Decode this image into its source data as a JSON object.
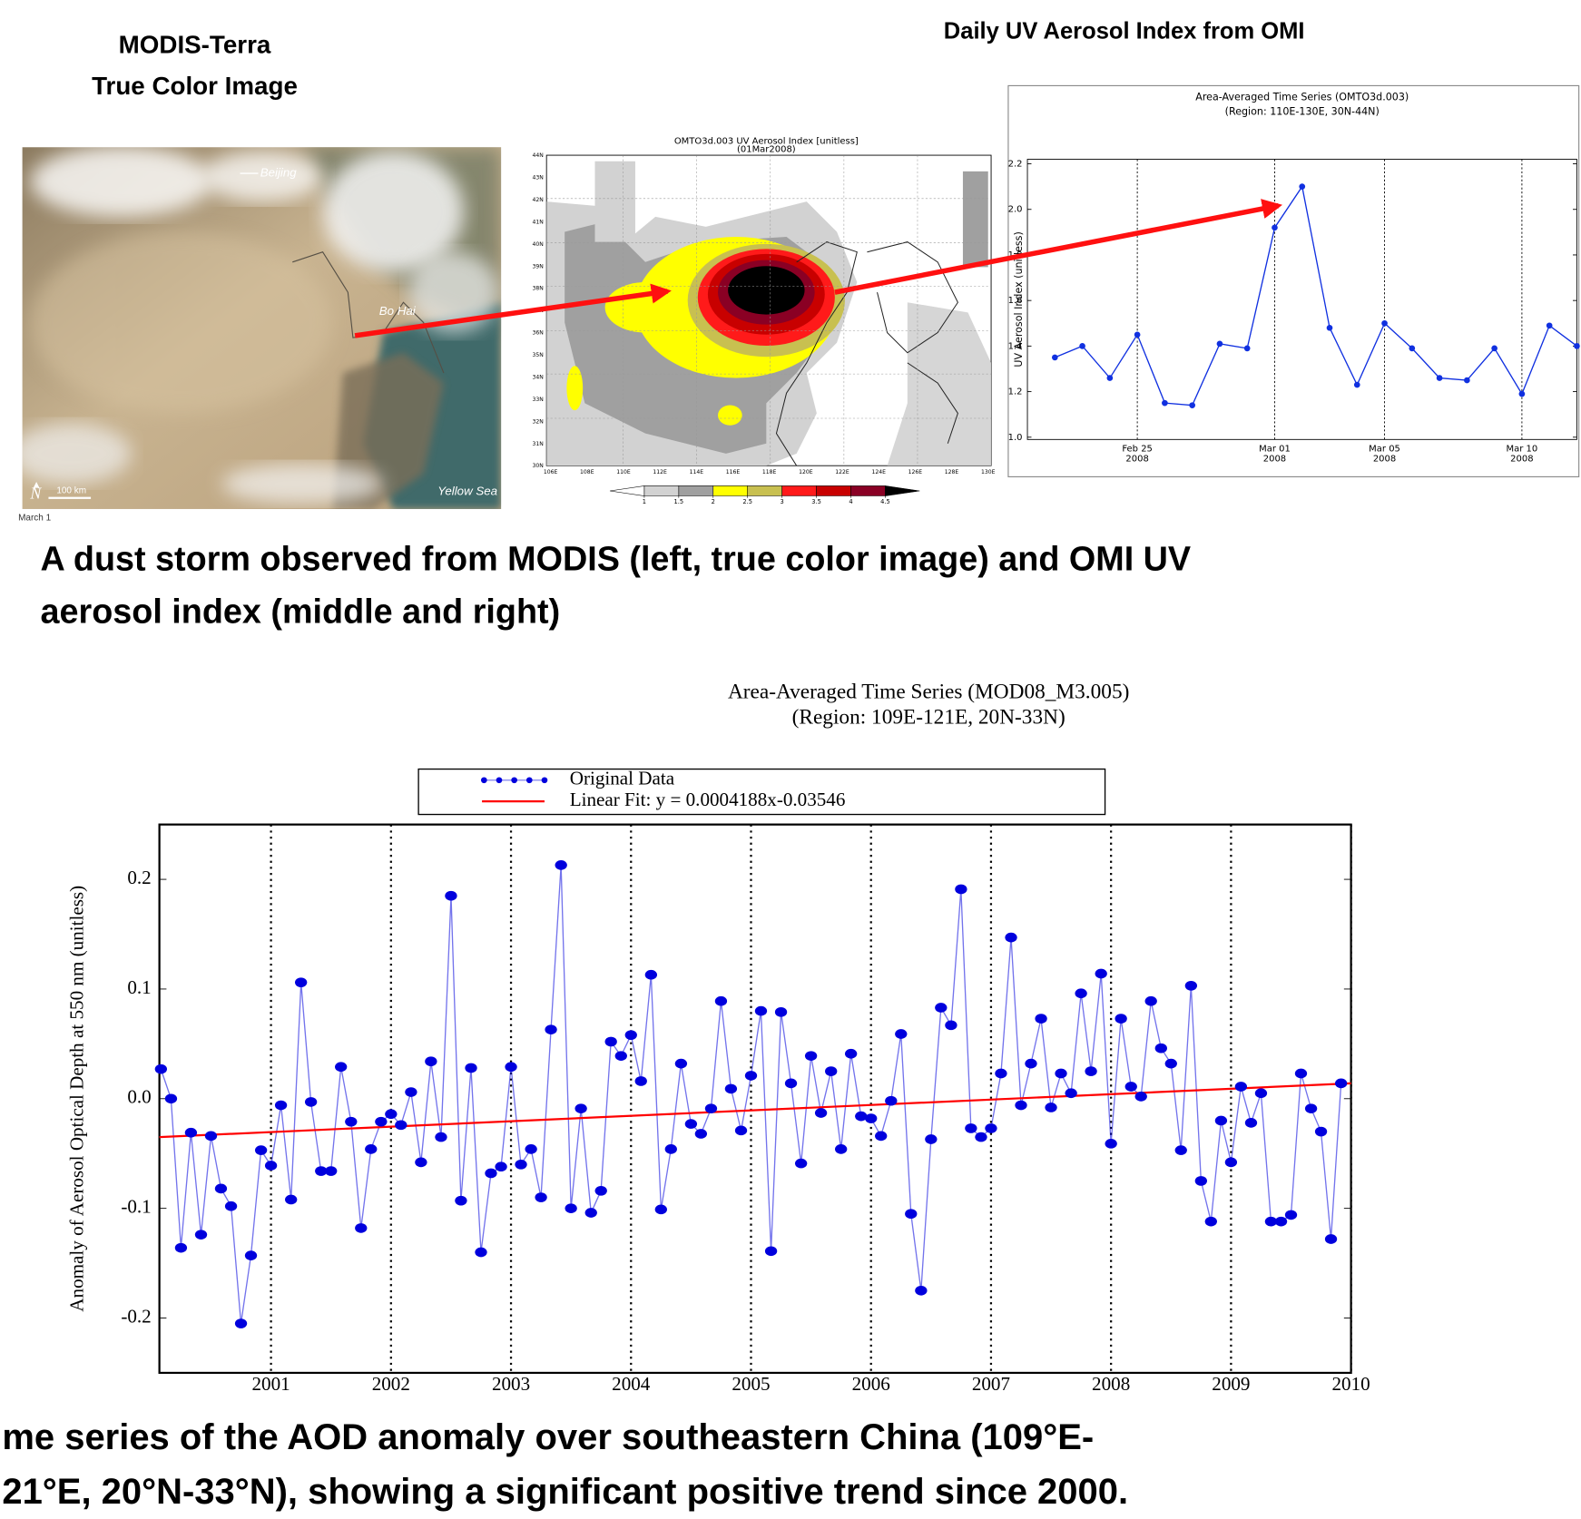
{
  "slide": {
    "modis_title": [
      "MODIS-Terra",
      "True Color Image"
    ],
    "omi_title": "Daily UV Aerosol Index from OMI",
    "caption_top": [
      "A dust storm observed from MODIS (left, true color image) and OMI UV",
      "aerosol index (middle and right)"
    ],
    "caption_bottom": [
      "me series of the AOD anomaly over southeastern China (109°E-",
      "21°E, 20°N-33°N),  showing  a significant positive trend since 2000."
    ]
  },
  "image": {
    "beijing": "Beijing",
    "bo_hai": "Bo Hai",
    "yellow_sea": "Yellow Sea",
    "scale": "100 km",
    "date": "March 1"
  },
  "map": {
    "title": "OMTO3d.003 UV Aerosol Index [unitless]",
    "date": "(01Mar2008)",
    "lat_labels": [
      "30N",
      "31N",
      "32N",
      "33N",
      "34N",
      "35N",
      "36N",
      "37N",
      "38N",
      "39N",
      "40N",
      "41N",
      "42N",
      "43N",
      "44N"
    ],
    "lon_labels": [
      "106E",
      "108E",
      "110E",
      "112E",
      "114E",
      "116E",
      "118E",
      "120E",
      "122E",
      "124E",
      "126E",
      "128E",
      "130E"
    ],
    "colorbar_ticks": [
      1,
      1.5,
      2,
      2.5,
      3,
      3.5,
      4,
      4.5
    ],
    "colorbar_colors": [
      "#ffffff",
      "#d2d2d2",
      "#a0a0a0",
      "#ffff00",
      "#c8c050",
      "#ff1a1a",
      "#c80000",
      "#8a0024",
      "#000000"
    ]
  },
  "chart_data": [
    {
      "type": "line",
      "title": "Area-Averaged Time Series (OMTO3d.003)",
      "subtitle": "(Region: 110E-130E, 30N-44N)",
      "y_label": "UV Aerosol Index  (unitless)",
      "x": [
        "2008-02-22",
        "2008-02-23",
        "2008-02-24",
        "2008-02-25",
        "2008-02-26",
        "2008-02-27",
        "2008-02-28",
        "2008-02-29",
        "2008-03-01",
        "2008-03-02",
        "2008-03-03",
        "2008-03-04",
        "2008-03-05",
        "2008-03-06",
        "2008-03-07",
        "2008-03-08",
        "2008-03-09",
        "2008-03-10",
        "2008-03-11",
        "2008-03-12"
      ],
      "values": [
        1.35,
        1.4,
        1.26,
        1.45,
        1.15,
        1.14,
        1.41,
        1.39,
        1.92,
        2.1,
        1.48,
        1.23,
        1.5,
        1.39,
        1.26,
        1.25,
        1.39,
        1.19,
        1.49,
        1.4
      ],
      "color": "#1030e0",
      "xlim": [
        "2008-02-21",
        "2008-03-12"
      ],
      "xticks": [
        {
          "value": "2008-02-25",
          "label": "Feb 25\n2008"
        },
        {
          "value": "2008-03-01",
          "label": "Mar 01\n2008"
        },
        {
          "value": "2008-03-05",
          "label": "Mar 05\n2008"
        },
        {
          "value": "2008-03-10",
          "label": "Mar 10\n2008"
        }
      ],
      "ylim": [
        0.99,
        2.22
      ],
      "yticks": [
        {
          "value": 1,
          "label": "1.0"
        },
        1.2,
        1.4,
        1.6,
        1.8,
        {
          "value": 2,
          "label": "2.0"
        },
        2.2
      ],
      "xgrid": true
    },
    {
      "type": "line",
      "title": "Area-Averaged Time Series (MOD08_M3.005)",
      "subtitle": "(Region: 109E-121E, 20N-33N)",
      "y_label": "Anomaly of Aerosol Optical Depth at 550 nm  (unitless)",
      "series": [
        {
          "name": "Original Data",
          "color": "#0000dd",
          "style": "line-marker",
          "x": [
            2000.083,
            2000.167,
            2000.25,
            2000.333,
            2000.417,
            2000.5,
            2000.583,
            2000.667,
            2000.75,
            2000.833,
            2000.917,
            2001,
            2001.083,
            2001.167,
            2001.25,
            2001.333,
            2001.417,
            2001.5,
            2001.583,
            2001.667,
            2001.75,
            2001.833,
            2001.917,
            2002,
            2002.083,
            2002.167,
            2002.25,
            2002.333,
            2002.417,
            2002.5,
            2002.583,
            2002.667,
            2002.75,
            2002.833,
            2002.917,
            2003,
            2003.083,
            2003.167,
            2003.25,
            2003.333,
            2003.417,
            2003.5,
            2003.583,
            2003.667,
            2003.75,
            2003.833,
            2003.917,
            2004,
            2004.083,
            2004.167,
            2004.25,
            2004.333,
            2004.417,
            2004.5,
            2004.583,
            2004.667,
            2004.75,
            2004.833,
            2004.917,
            2005,
            2005.083,
            2005.167,
            2005.25,
            2005.333,
            2005.417,
            2005.5,
            2005.583,
            2005.667,
            2005.75,
            2005.833,
            2005.917,
            2006,
            2006.083,
            2006.167,
            2006.25,
            2006.333,
            2006.417,
            2006.5,
            2006.583,
            2006.667,
            2006.75,
            2006.833,
            2006.917,
            2007,
            2007.083,
            2007.167,
            2007.25,
            2007.333,
            2007.417,
            2007.5,
            2007.583,
            2007.667,
            2007.75,
            2007.833,
            2007.917,
            2008,
            2008.083,
            2008.167,
            2008.25,
            2008.333,
            2008.417,
            2008.5,
            2008.583,
            2008.667,
            2008.75,
            2008.833,
            2008.917,
            2009,
            2009.083,
            2009.167,
            2009.25,
            2009.333,
            2009.417,
            2009.5,
            2009.583,
            2009.667,
            2009.75,
            2009.833,
            2009.917
          ],
          "values": [
            0.027,
            0,
            -0.136,
            -0.031,
            -0.124,
            -0.034,
            -0.082,
            -0.098,
            -0.205,
            -0.143,
            -0.047,
            -0.061,
            -0.006,
            -0.092,
            0.106,
            -0.003,
            -0.066,
            -0.066,
            0.029,
            -0.021,
            -0.118,
            -0.046,
            -0.021,
            -0.014,
            -0.024,
            0.006,
            -0.058,
            0.034,
            -0.035,
            0.185,
            -0.093,
            0.028,
            -0.14,
            -0.068,
            -0.062,
            0.029,
            -0.06,
            -0.046,
            -0.09,
            0.063,
            0.213,
            -0.1,
            -0.009,
            -0.104,
            -0.084,
            0.052,
            0.039,
            0.058,
            0.016,
            0.113,
            -0.101,
            -0.046,
            0.032,
            -0.023,
            -0.032,
            -0.009,
            0.089,
            0.009,
            -0.029,
            0.021,
            0.08,
            -0.139,
            0.079,
            0.014,
            -0.059,
            0.039,
            -0.013,
            0.025,
            -0.046,
            0.041,
            -0.016,
            -0.018,
            -0.034,
            -0.002,
            0.059,
            -0.105,
            -0.175,
            -0.037,
            0.083,
            0.067,
            0.191,
            -0.027,
            -0.035,
            -0.027,
            0.023,
            0.147,
            -0.006,
            0.032,
            0.073,
            -0.008,
            0.023,
            0.005,
            0.096,
            0.025,
            0.114,
            -0.041,
            0.073,
            0.011,
            0.002,
            0.089,
            0.046,
            0.032,
            -0.047,
            0.103,
            -0.075,
            -0.112,
            -0.02,
            -0.058,
            0.011,
            -0.022,
            0.005,
            -0.112,
            -0.112,
            -0.106,
            0.023,
            -0.009,
            -0.03,
            -0.128,
            0.014
          ]
        },
        {
          "name": "Linear Fit: y = 0.0004188x-0.03546",
          "color": "#ff0000",
          "style": "line",
          "x": [
            2000.07,
            2010
          ],
          "values": [
            -0.035,
            0.014
          ]
        }
      ],
      "xlim": [
        2000.07,
        2010
      ],
      "xticks": [
        2001,
        2002,
        2003,
        2004,
        2005,
        2006,
        2007,
        2008,
        2009,
        2010
      ],
      "ylim": [
        -0.25,
        0.25
      ],
      "yticks": [
        0.2,
        0.1,
        {
          "value": 0,
          "label": "0.0"
        },
        -0.1,
        -0.2
      ],
      "xgrid": true,
      "legend": "top"
    }
  ]
}
